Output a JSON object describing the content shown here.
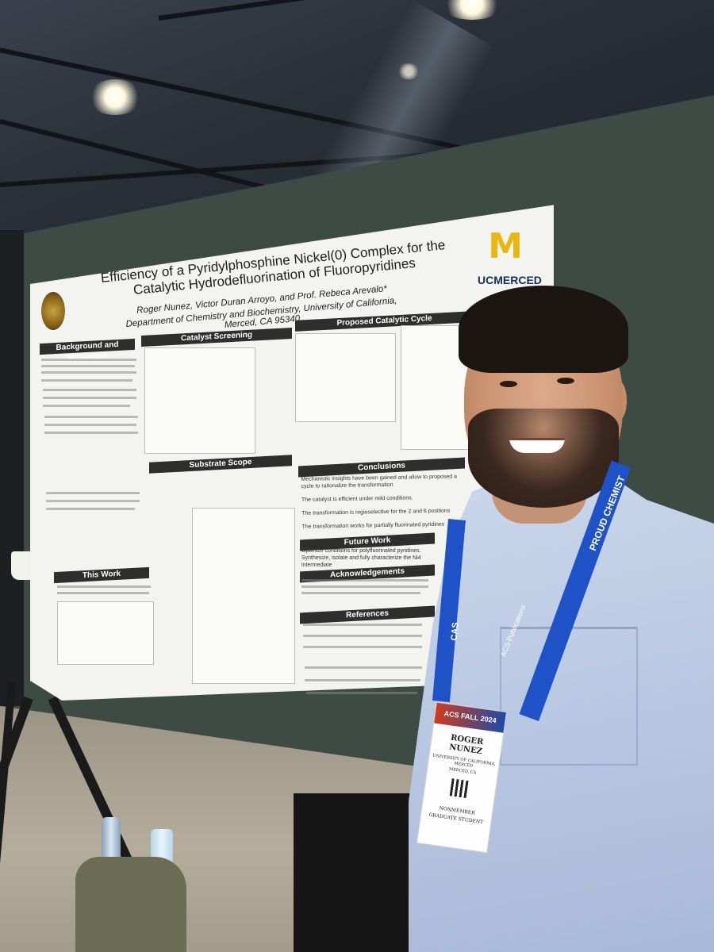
{
  "scene": {
    "description_colors": {
      "board": "#3e4a44",
      "poster": "#f3f3f0",
      "shirt": "#b9c8e2",
      "lanyard": "#1f52c7",
      "logo_gold": "#e8b80e",
      "logo_navy": "#142f5e"
    }
  },
  "poster": {
    "title": "Efficiency of a Pyridylphosphine Nickel(0) Complex for the Catalytic Hydrodefluorination of Fluoropyridines",
    "authors": "Roger Nunez, Victor Duran Arroyo, and Prof. Rebeca Arevalo*",
    "department": "Department of Chemistry and Biochemistry, University of California, Merced, CA 95340",
    "logo_letter": "M",
    "logo_text": "UCMERCED",
    "sections": {
      "background": "Background and Motivation",
      "catalyst": "Catalyst Screening",
      "cycle": "Proposed Catalytic Cycle",
      "substrate": "Substrate Scope",
      "conclusions": "Conclusions",
      "this_work": "This Work",
      "future": "Future Work",
      "acknowledgements": "Acknowledgements",
      "references": "References"
    },
    "conclusions": [
      "Mechanistic insights have been gained and allow to proposed a cycle to rationalize the transformation",
      "The catalyst is efficient under mild conditions.",
      "The transformation is regioselective for the 2 and 6 positions",
      "The transformation works for partially fluorinated pyridines"
    ],
    "future_work": [
      "Optimize conditions for polyfluorinated pyridines.",
      "Synthesize, isolate and fully characterize the Ni4 intermediate"
    ]
  },
  "badge": {
    "event": "ACS FALL 2024",
    "name_first": "ROGER",
    "name_last": "NUNEZ",
    "affiliation": "UNIVERSITY OF CALIFORNIA, MERCED",
    "location": "MERCED, CA",
    "role_line1": "NONMEMBER",
    "role_line2": "GRADUATE STUDENT"
  },
  "lanyard": {
    "text_right": "PROUD CHEMIST",
    "text_left": "CAS",
    "text_mid": "ACS Publications"
  }
}
